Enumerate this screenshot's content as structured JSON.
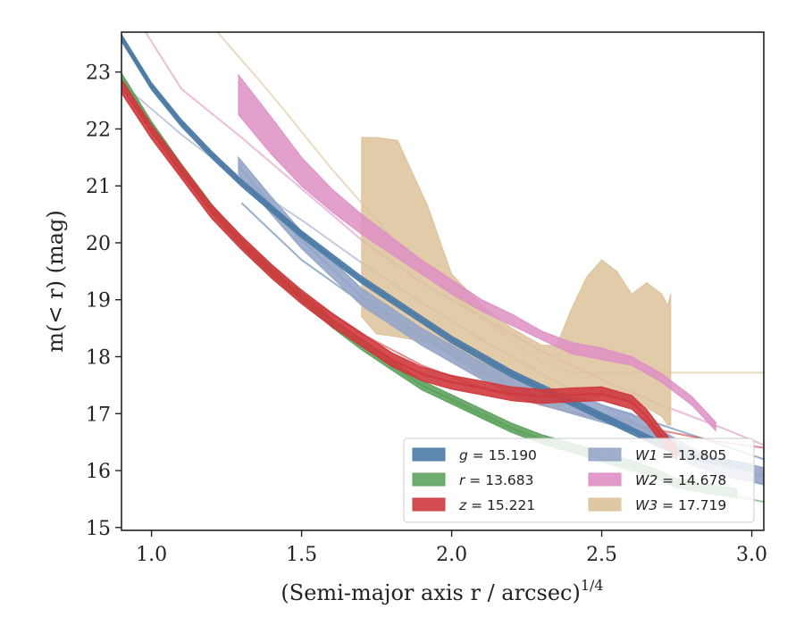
{
  "chart_data": {
    "type": "line",
    "title": "",
    "xlabel": "(Semi-major axis r / arcsec)",
    "xlabel_exponent": "1/4",
    "ylabel": "m(< r) (mag)",
    "xlim": [
      0.9,
      3.04
    ],
    "ylim": [
      23.7,
      14.95
    ],
    "y_inverted": true,
    "x_ticks": [
      "1.0",
      "1.5",
      "2.0",
      "2.5",
      "3.0"
    ],
    "y_ticks": [
      "15",
      "16",
      "17",
      "18",
      "19",
      "20",
      "21",
      "22",
      "23"
    ],
    "grid": false,
    "legend_position": "lower-right",
    "legend_columns": 2,
    "series": [
      {
        "name": "g = 15.190",
        "color": "#4c7ba6",
        "band_width": 0.06,
        "data": [
          [
            0.9,
            23.6
          ],
          [
            1.0,
            22.75
          ],
          [
            1.1,
            22.1
          ],
          [
            1.2,
            21.55
          ],
          [
            1.3,
            21.05
          ],
          [
            1.4,
            20.6
          ],
          [
            1.5,
            20.15
          ],
          [
            1.6,
            19.75
          ],
          [
            1.7,
            19.35
          ],
          [
            1.8,
            19.0
          ],
          [
            1.9,
            18.65
          ],
          [
            2.0,
            18.3
          ],
          [
            2.1,
            18.0
          ],
          [
            2.2,
            17.7
          ],
          [
            2.3,
            17.45
          ],
          [
            2.4,
            17.2
          ],
          [
            2.5,
            16.95
          ],
          [
            2.6,
            16.7
          ],
          [
            2.7,
            16.45
          ],
          [
            2.78,
            16.28
          ],
          [
            2.9,
            16.15
          ],
          [
            3.0,
            16.05
          ]
        ],
        "model": [
          [
            1.3,
            20.7
          ],
          [
            1.5,
            19.7
          ],
          [
            1.7,
            18.95
          ],
          [
            1.9,
            18.4
          ],
          [
            2.1,
            17.9
          ],
          [
            2.3,
            17.5
          ],
          [
            2.5,
            17.15
          ],
          [
            2.7,
            16.8
          ],
          [
            2.9,
            16.45
          ],
          [
            3.04,
            16.2
          ]
        ]
      },
      {
        "name": "r = 13.683",
        "color": "#5fa35f",
        "band_width": 0.08,
        "data": [
          [
            0.9,
            22.9
          ],
          [
            1.0,
            22.05
          ],
          [
            1.1,
            21.3
          ],
          [
            1.2,
            20.6
          ],
          [
            1.3,
            20.0
          ],
          [
            1.4,
            19.5
          ],
          [
            1.5,
            19.05
          ],
          [
            1.6,
            18.6
          ],
          [
            1.7,
            18.2
          ],
          [
            1.8,
            17.85
          ],
          [
            1.9,
            17.5
          ],
          [
            2.0,
            17.25
          ],
          [
            2.1,
            17.0
          ],
          [
            2.2,
            16.75
          ],
          [
            2.3,
            16.55
          ],
          [
            2.4,
            16.4
          ],
          [
            2.5,
            16.25
          ],
          [
            2.6,
            16.1
          ],
          [
            2.7,
            15.9
          ],
          [
            2.75,
            15.78
          ],
          [
            2.85,
            15.68
          ],
          [
            2.95,
            15.6
          ]
        ],
        "model": [
          [
            0.9,
            22.9
          ],
          [
            1.1,
            21.3
          ],
          [
            1.3,
            20.0
          ],
          [
            1.5,
            19.05
          ],
          [
            1.7,
            18.2
          ],
          [
            1.9,
            17.5
          ],
          [
            2.1,
            16.95
          ],
          [
            2.3,
            16.5
          ],
          [
            2.5,
            16.15
          ],
          [
            2.7,
            15.85
          ],
          [
            2.9,
            15.6
          ],
          [
            3.04,
            15.45
          ]
        ]
      },
      {
        "name": "z = 15.221",
        "color": "#cf3a3e",
        "band_width": 0.12,
        "data": [
          [
            0.9,
            22.75
          ],
          [
            1.0,
            21.95
          ],
          [
            1.1,
            21.25
          ],
          [
            1.2,
            20.55
          ],
          [
            1.3,
            20.0
          ],
          [
            1.4,
            19.5
          ],
          [
            1.5,
            19.05
          ],
          [
            1.6,
            18.65
          ],
          [
            1.7,
            18.3
          ],
          [
            1.8,
            17.95
          ],
          [
            1.9,
            17.7
          ],
          [
            2.0,
            17.55
          ],
          [
            2.1,
            17.45
          ],
          [
            2.2,
            17.35
          ],
          [
            2.3,
            17.3
          ],
          [
            2.4,
            17.33
          ],
          [
            2.5,
            17.35
          ],
          [
            2.6,
            17.2
          ],
          [
            2.65,
            16.95
          ],
          [
            2.7,
            16.6
          ],
          [
            2.75,
            16.3
          ]
        ],
        "model": [
          [
            0.9,
            22.75
          ],
          [
            1.1,
            21.2
          ],
          [
            1.3,
            20.0
          ],
          [
            1.5,
            19.1
          ],
          [
            1.7,
            18.4
          ],
          [
            1.9,
            17.85
          ],
          [
            2.1,
            17.45
          ],
          [
            2.3,
            17.15
          ],
          [
            2.5,
            16.9
          ],
          [
            2.7,
            16.7
          ],
          [
            2.9,
            16.5
          ],
          [
            3.04,
            16.4
          ]
        ]
      },
      {
        "name": "W1 = 13.805",
        "color": "#96a6c8",
        "band_width": 0.15,
        "data": [
          [
            1.29,
            21.35
          ],
          [
            1.4,
            20.65
          ],
          [
            1.5,
            20.05
          ],
          [
            1.6,
            19.55
          ],
          [
            1.7,
            19.05
          ],
          [
            1.8,
            18.7
          ],
          [
            1.9,
            18.35
          ],
          [
            2.0,
            18.05
          ],
          [
            2.1,
            17.75
          ],
          [
            2.2,
            17.5
          ],
          [
            2.3,
            17.3
          ],
          [
            2.4,
            17.15
          ],
          [
            2.5,
            17.0
          ],
          [
            2.6,
            16.85
          ],
          [
            2.7,
            16.55
          ],
          [
            2.8,
            16.25
          ],
          [
            2.9,
            16.05
          ],
          [
            3.0,
            15.95
          ],
          [
            3.04,
            15.9
          ]
        ],
        "model": [
          [
            0.9,
            22.8
          ],
          [
            1.1,
            21.9
          ],
          [
            1.3,
            21.1
          ],
          [
            1.5,
            20.4
          ],
          [
            1.7,
            19.65
          ],
          [
            1.9,
            18.95
          ],
          [
            2.1,
            18.3
          ],
          [
            2.3,
            17.7
          ],
          [
            2.5,
            17.15
          ],
          [
            2.7,
            16.6
          ],
          [
            2.9,
            16.1
          ],
          [
            3.04,
            15.75
          ]
        ]
      },
      {
        "name": "W2 = 14.678",
        "color": "#de8fc4",
        "data": [
          [
            1.29,
            22.25,
            22.95
          ],
          [
            1.4,
            21.55,
            22.2
          ],
          [
            1.5,
            21.0,
            21.5
          ],
          [
            1.6,
            20.55,
            20.95
          ],
          [
            1.7,
            20.15,
            20.5
          ],
          [
            1.8,
            19.8,
            20.1
          ],
          [
            1.9,
            19.45,
            19.7
          ],
          [
            2.0,
            19.1,
            19.35
          ],
          [
            2.1,
            18.8,
            19.0
          ],
          [
            2.2,
            18.55,
            18.75
          ],
          [
            2.3,
            18.3,
            18.45
          ],
          [
            2.4,
            18.05,
            18.25
          ],
          [
            2.5,
            17.95,
            18.15
          ],
          [
            2.6,
            17.85,
            18.0
          ],
          [
            2.7,
            17.55,
            17.7
          ],
          [
            2.8,
            17.15,
            17.3
          ],
          [
            2.88,
            16.7,
            16.85
          ]
        ],
        "model": [
          [
            0.98,
            23.7
          ],
          [
            1.1,
            22.7
          ],
          [
            1.3,
            21.85
          ],
          [
            1.5,
            20.95
          ],
          [
            1.7,
            20.05
          ],
          [
            1.9,
            19.3
          ],
          [
            2.1,
            18.7
          ],
          [
            2.3,
            18.1
          ],
          [
            2.5,
            17.6
          ],
          [
            2.7,
            17.15
          ],
          [
            2.9,
            16.75
          ],
          [
            3.04,
            16.45
          ]
        ]
      },
      {
        "name": "W3 = 17.719",
        "color": "#dcc29a",
        "data": [
          [
            1.7,
            18.7,
            21.85
          ],
          [
            1.75,
            18.4,
            21.85
          ],
          [
            1.82,
            18.35,
            21.8
          ],
          [
            1.92,
            18.25,
            20.65
          ],
          [
            2.0,
            18.0,
            19.45
          ],
          [
            2.1,
            17.65,
            18.9
          ],
          [
            2.2,
            17.3,
            18.5
          ],
          [
            2.3,
            17.15,
            18.2
          ],
          [
            2.35,
            17.1,
            18.2
          ],
          [
            2.4,
            17.2,
            18.85
          ],
          [
            2.45,
            17.25,
            19.4
          ],
          [
            2.5,
            17.3,
            19.7
          ],
          [
            2.55,
            17.3,
            19.5
          ],
          [
            2.6,
            17.2,
            19.1
          ],
          [
            2.65,
            17.1,
            19.3
          ],
          [
            2.7,
            16.95,
            19.1
          ],
          [
            2.72,
            16.8,
            18.9
          ],
          [
            2.73,
            16.8,
            19.1
          ]
        ],
        "model": [
          [
            1.22,
            23.7
          ],
          [
            1.4,
            22.6
          ],
          [
            1.6,
            21.3
          ],
          [
            1.8,
            20.1
          ],
          [
            2.0,
            19.1
          ],
          [
            2.2,
            18.3
          ],
          [
            2.3,
            17.9
          ],
          [
            2.4,
            17.72
          ],
          [
            2.6,
            17.72
          ],
          [
            2.8,
            17.72
          ],
          [
            3.04,
            17.72
          ]
        ]
      }
    ]
  }
}
